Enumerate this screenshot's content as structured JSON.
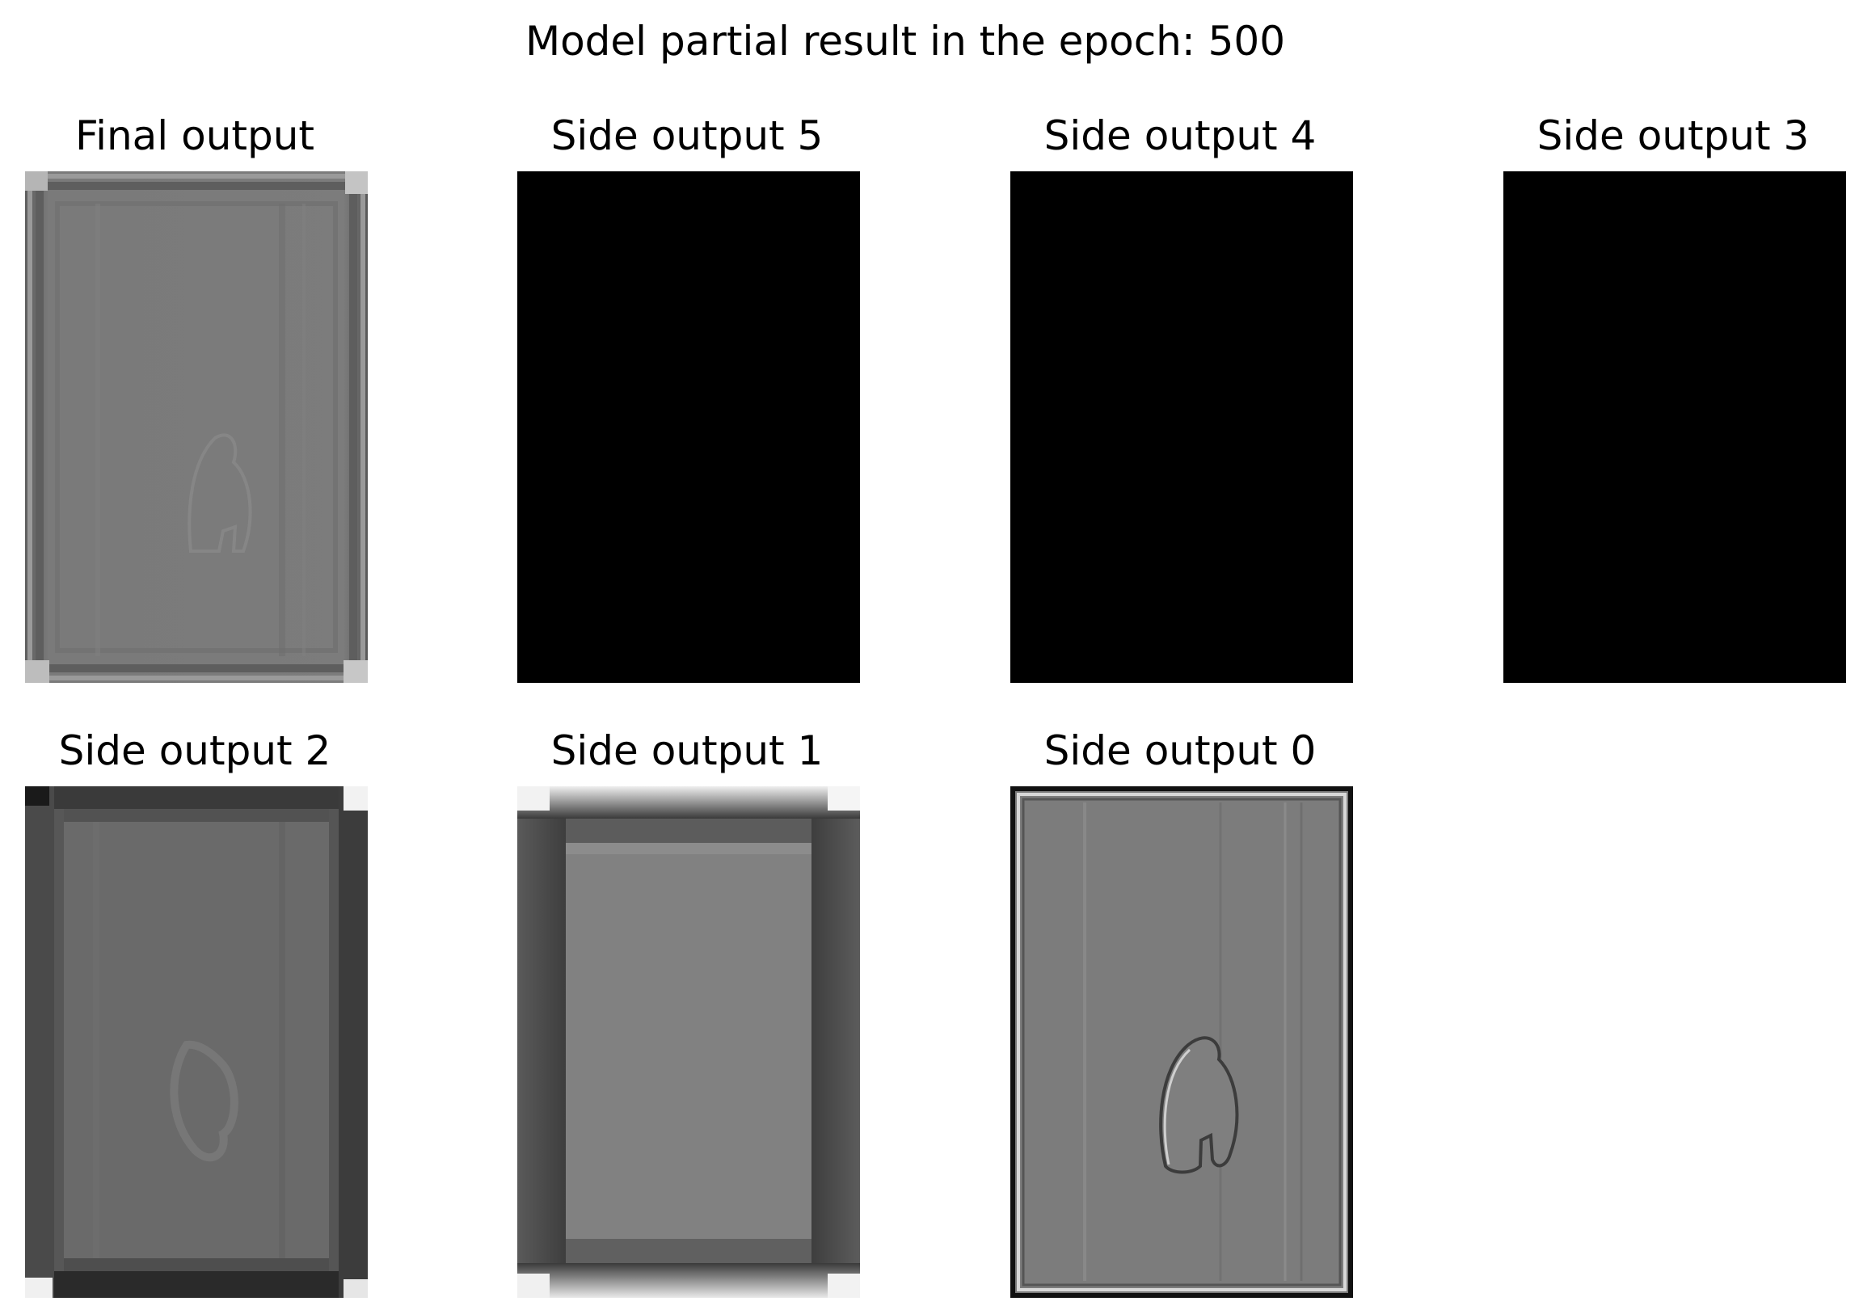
{
  "figure": {
    "title": "Model partial result in the epoch: 500"
  },
  "panels": [
    {
      "title": "Final output",
      "render": "final",
      "base_color": "#7a7a7a"
    },
    {
      "title": "Side output 5",
      "render": "black",
      "base_color": "#000000"
    },
    {
      "title": "Side output 4",
      "render": "black",
      "base_color": "#000000"
    },
    {
      "title": "Side output 3",
      "render": "black",
      "base_color": "#000000"
    },
    {
      "title": "Side output 2",
      "render": "side2",
      "base_color": "#6a6a6a"
    },
    {
      "title": "Side output 1",
      "render": "side1",
      "base_color": "#808080"
    },
    {
      "title": "Side output 0",
      "render": "side0",
      "base_color": "#7c7c7c"
    }
  ]
}
